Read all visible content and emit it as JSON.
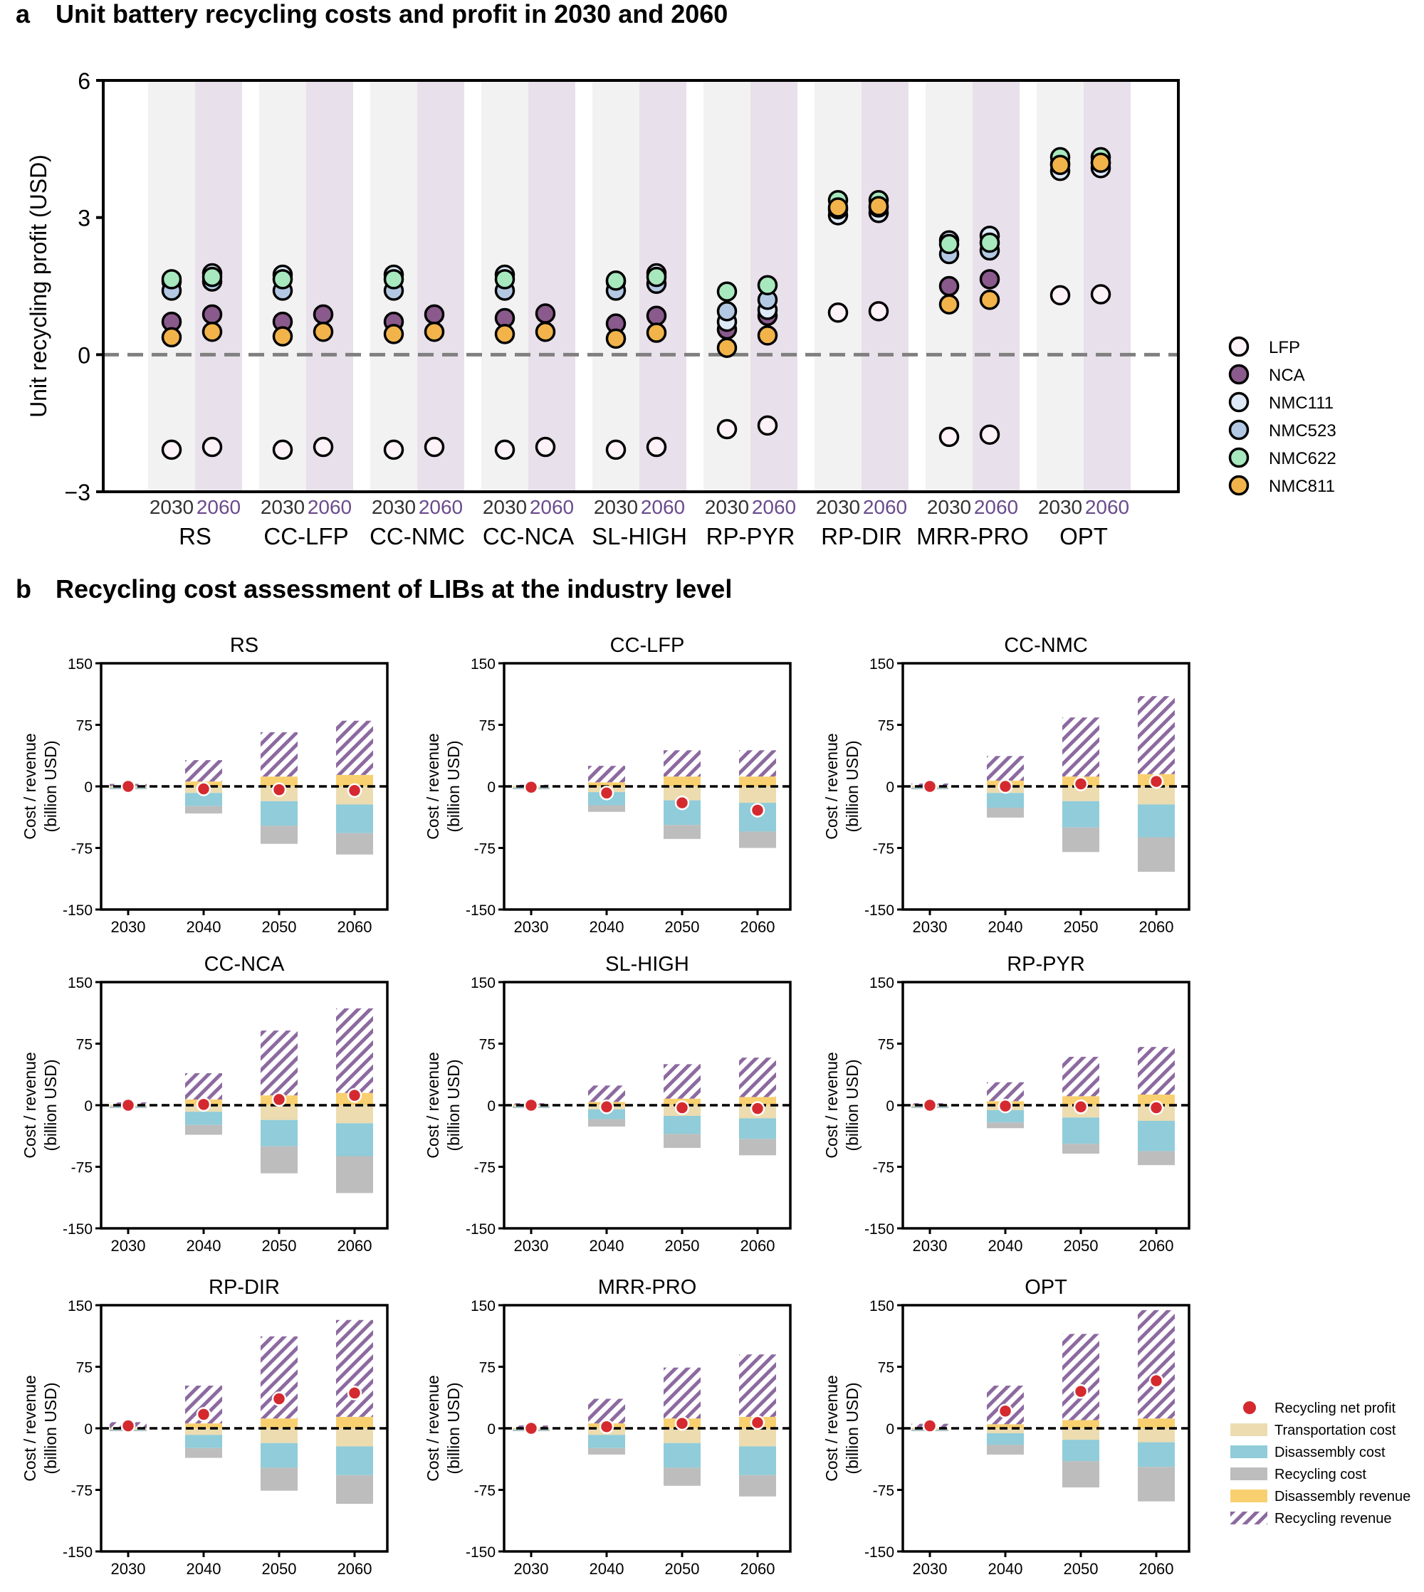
{
  "chart_data": [
    {
      "type": "scatter",
      "panel_letter": "a",
      "title": "Unit battery recycling costs and profit in 2030 and 2060",
      "ylabel": "Unit recycling profit (USD)",
      "ylim": [
        -3,
        6
      ],
      "yticks": [
        -3,
        0,
        3,
        6
      ],
      "ytick_labels": [
        "−3",
        "0",
        "3",
        "6"
      ],
      "year_labels": [
        "2030",
        "2060"
      ],
      "year_colors": [
        "#333333",
        "#6a4b8c"
      ],
      "background_colors": [
        "#f2f2f2",
        "#e8e0ea"
      ],
      "zero_line": true,
      "chemistries": [
        "LFP",
        "NCA",
        "NMC111",
        "NMC523",
        "NMC622",
        "NMC811"
      ],
      "chemistry_colors": {
        "LFP": "#fdf2f7",
        "NCA": "#8a5a8c",
        "NMC111": "#dde9f6",
        "NMC523": "#b3c9e3",
        "NMC622": "#a8e8be",
        "NMC811": "#f2b44a"
      },
      "scenarios": [
        "RS",
        "CC-LFP",
        "CC-NMC",
        "CC-NCA",
        "SL-HIGH",
        "RP-PYR",
        "RP-DIR",
        "MRR-PRO",
        "OPT"
      ],
      "series": [
        {
          "name": "LFP",
          "values_2030": [
            -2.08,
            -2.08,
            -2.08,
            -2.08,
            -2.08,
            -1.63,
            0.92,
            -1.8,
            1.3
          ],
          "values_2060": [
            -2.02,
            -2.02,
            -2.02,
            -2.02,
            -2.02,
            -1.55,
            0.95,
            -1.75,
            1.32
          ]
        },
        {
          "name": "NCA",
          "values_2030": [
            0.72,
            0.72,
            0.72,
            0.8,
            0.68,
            0.55,
            null,
            1.5,
            null
          ],
          "values_2060": [
            0.88,
            0.88,
            0.88,
            0.9,
            0.85,
            0.85,
            null,
            1.65,
            null
          ]
        },
        {
          "name": "NMC111",
          "values_2030": [
            1.6,
            1.75,
            1.75,
            1.75,
            1.6,
            0.72,
            3.05,
            2.5,
            4.02
          ],
          "values_2060": [
            1.78,
            null,
            null,
            null,
            1.78,
            0.98,
            3.1,
            2.6,
            4.08
          ]
        },
        {
          "name": "NMC523",
          "values_2030": [
            1.4,
            1.4,
            1.4,
            1.4,
            1.4,
            0.95,
            3.18,
            2.2,
            4.18
          ],
          "values_2060": [
            1.6,
            null,
            null,
            null,
            1.55,
            1.2,
            3.22,
            2.28,
            4.2
          ]
        },
        {
          "name": "NMC622",
          "values_2030": [
            1.65,
            1.65,
            1.65,
            1.65,
            1.62,
            1.38,
            3.38,
            2.42,
            4.32
          ],
          "values_2060": [
            1.7,
            null,
            null,
            null,
            1.7,
            1.52,
            3.38,
            2.45,
            4.32
          ]
        },
        {
          "name": "NMC811",
          "values_2030": [
            0.38,
            0.4,
            0.45,
            0.45,
            0.35,
            0.15,
            3.22,
            1.1,
            4.15
          ],
          "values_2060": [
            0.5,
            0.5,
            0.5,
            0.5,
            0.48,
            0.42,
            3.25,
            1.2,
            4.2
          ]
        }
      ]
    },
    {
      "type": "bar",
      "panel_letter": "b",
      "title": "Recycling cost assessment of LIBs at the industry level",
      "ylabel_line1": "Cost / revenue",
      "ylabel_line2": "(billion USD)",
      "ylim": [
        -150,
        150
      ],
      "yticks": [
        150,
        75,
        0,
        -75,
        -150
      ],
      "ytick_labels": [
        "150",
        "75",
        "0",
        "-75",
        "-150"
      ],
      "categories": [
        "2030",
        "2040",
        "2050",
        "2060"
      ],
      "stack_components": [
        "Transportation cost",
        "Disassembly cost",
        "Recycling cost",
        "Disassembly revenue",
        "Recycling revenue"
      ],
      "legend": [
        "Recycling net profit",
        "Transportation cost",
        "Disassembly cost",
        "Recycling cost",
        "Disassembly revenue",
        "Recycling revenue"
      ],
      "colors": {
        "profit": "#d42a2f",
        "transport": "#ecdcb0",
        "disassembly": "#90ccd9",
        "recycling": "#bdbdbd",
        "dis_revenue": "#f9d070",
        "rec_revenue": "#8c6aa0"
      },
      "panels": [
        {
          "title": "RS",
          "transport": [
            -1.5,
            -8,
            -18,
            -22
          ],
          "disassembly": [
            -1,
            -16,
            -30,
            -35
          ],
          "recycling": [
            -1,
            -9,
            -22,
            -26
          ],
          "dis_revenue": [
            0.5,
            6,
            12,
            14
          ],
          "rec_revenue": [
            2.5,
            26,
            54,
            66
          ],
          "net_profit": [
            0,
            -3,
            -4,
            -5
          ]
        },
        {
          "title": "CC-LFP",
          "transport": [
            -1.5,
            -7,
            -17,
            -20
          ],
          "disassembly": [
            -1,
            -16,
            -30,
            -35
          ],
          "recycling": [
            -1,
            -8,
            -17,
            -20
          ],
          "dis_revenue": [
            0.5,
            5,
            12,
            12
          ],
          "rec_revenue": [
            1.5,
            20,
            32,
            32
          ],
          "net_profit": [
            -1,
            -8,
            -20,
            -29
          ]
        },
        {
          "title": "CC-NMC",
          "transport": [
            -1.5,
            -8,
            -18,
            -22
          ],
          "disassembly": [
            -1,
            -18,
            -32,
            -40
          ],
          "recycling": [
            -1,
            -12,
            -30,
            -42
          ],
          "dis_revenue": [
            0.5,
            7,
            12,
            15
          ],
          "rec_revenue": [
            3,
            30,
            72,
            95
          ],
          "net_profit": [
            0,
            0,
            3,
            6
          ]
        },
        {
          "title": "CC-NCA",
          "transport": [
            -1.5,
            -8,
            -18,
            -22
          ],
          "disassembly": [
            -1,
            -16,
            -32,
            -40
          ],
          "recycling": [
            -1,
            -12,
            -33,
            -45
          ],
          "dis_revenue": [
            0.5,
            7,
            12,
            15
          ],
          "rec_revenue": [
            3,
            32,
            79,
            103
          ],
          "net_profit": [
            0,
            1,
            7,
            12
          ]
        },
        {
          "title": "SL-HIGH",
          "transport": [
            -1.5,
            -5,
            -13,
            -16
          ],
          "disassembly": [
            -1,
            -12,
            -22,
            -25
          ],
          "recycling": [
            -1,
            -9,
            -17,
            -20
          ],
          "dis_revenue": [
            0.5,
            4,
            8,
            10
          ],
          "rec_revenue": [
            2,
            20,
            42,
            48
          ],
          "net_profit": [
            0,
            -2,
            -3,
            -4
          ]
        },
        {
          "title": "RP-PYR",
          "transport": [
            -1.5,
            -6,
            -15,
            -19
          ],
          "disassembly": [
            -1,
            -15,
            -32,
            -37
          ],
          "recycling": [
            -1,
            -7,
            -12,
            -17
          ],
          "dis_revenue": [
            0.5,
            5,
            11,
            13
          ],
          "rec_revenue": [
            2,
            23,
            48,
            58
          ],
          "net_profit": [
            0,
            -1,
            -2,
            -3
          ]
        },
        {
          "title": "RP-DIR",
          "transport": [
            -1.5,
            -8,
            -18,
            -22
          ],
          "disassembly": [
            -1,
            -16,
            -30,
            -35
          ],
          "recycling": [
            -1,
            -12,
            -28,
            -35
          ],
          "dis_revenue": [
            0.5,
            6,
            12,
            14
          ],
          "rec_revenue": [
            7,
            46,
            100,
            118
          ],
          "net_profit": [
            3,
            17,
            36,
            43
          ]
        },
        {
          "title": "MRR-PRO",
          "transport": [
            -1.5,
            -8,
            -18,
            -22
          ],
          "disassembly": [
            -1,
            -16,
            -30,
            -35
          ],
          "recycling": [
            -1,
            -8,
            -22,
            -26
          ],
          "dis_revenue": [
            0.5,
            6,
            12,
            14
          ],
          "rec_revenue": [
            3,
            30,
            62,
            76
          ],
          "net_profit": [
            0,
            2,
            6,
            7
          ]
        },
        {
          "title": "OPT",
          "transport": [
            -1.5,
            -6,
            -14,
            -17
          ],
          "disassembly": [
            -1,
            -14,
            -26,
            -30
          ],
          "recycling": [
            -1,
            -12,
            -32,
            -42
          ],
          "dis_revenue": [
            0.5,
            5,
            10,
            12
          ],
          "rec_revenue": [
            5,
            47,
            105,
            132
          ],
          "net_profit": [
            3,
            21,
            45,
            58
          ]
        }
      ]
    }
  ]
}
